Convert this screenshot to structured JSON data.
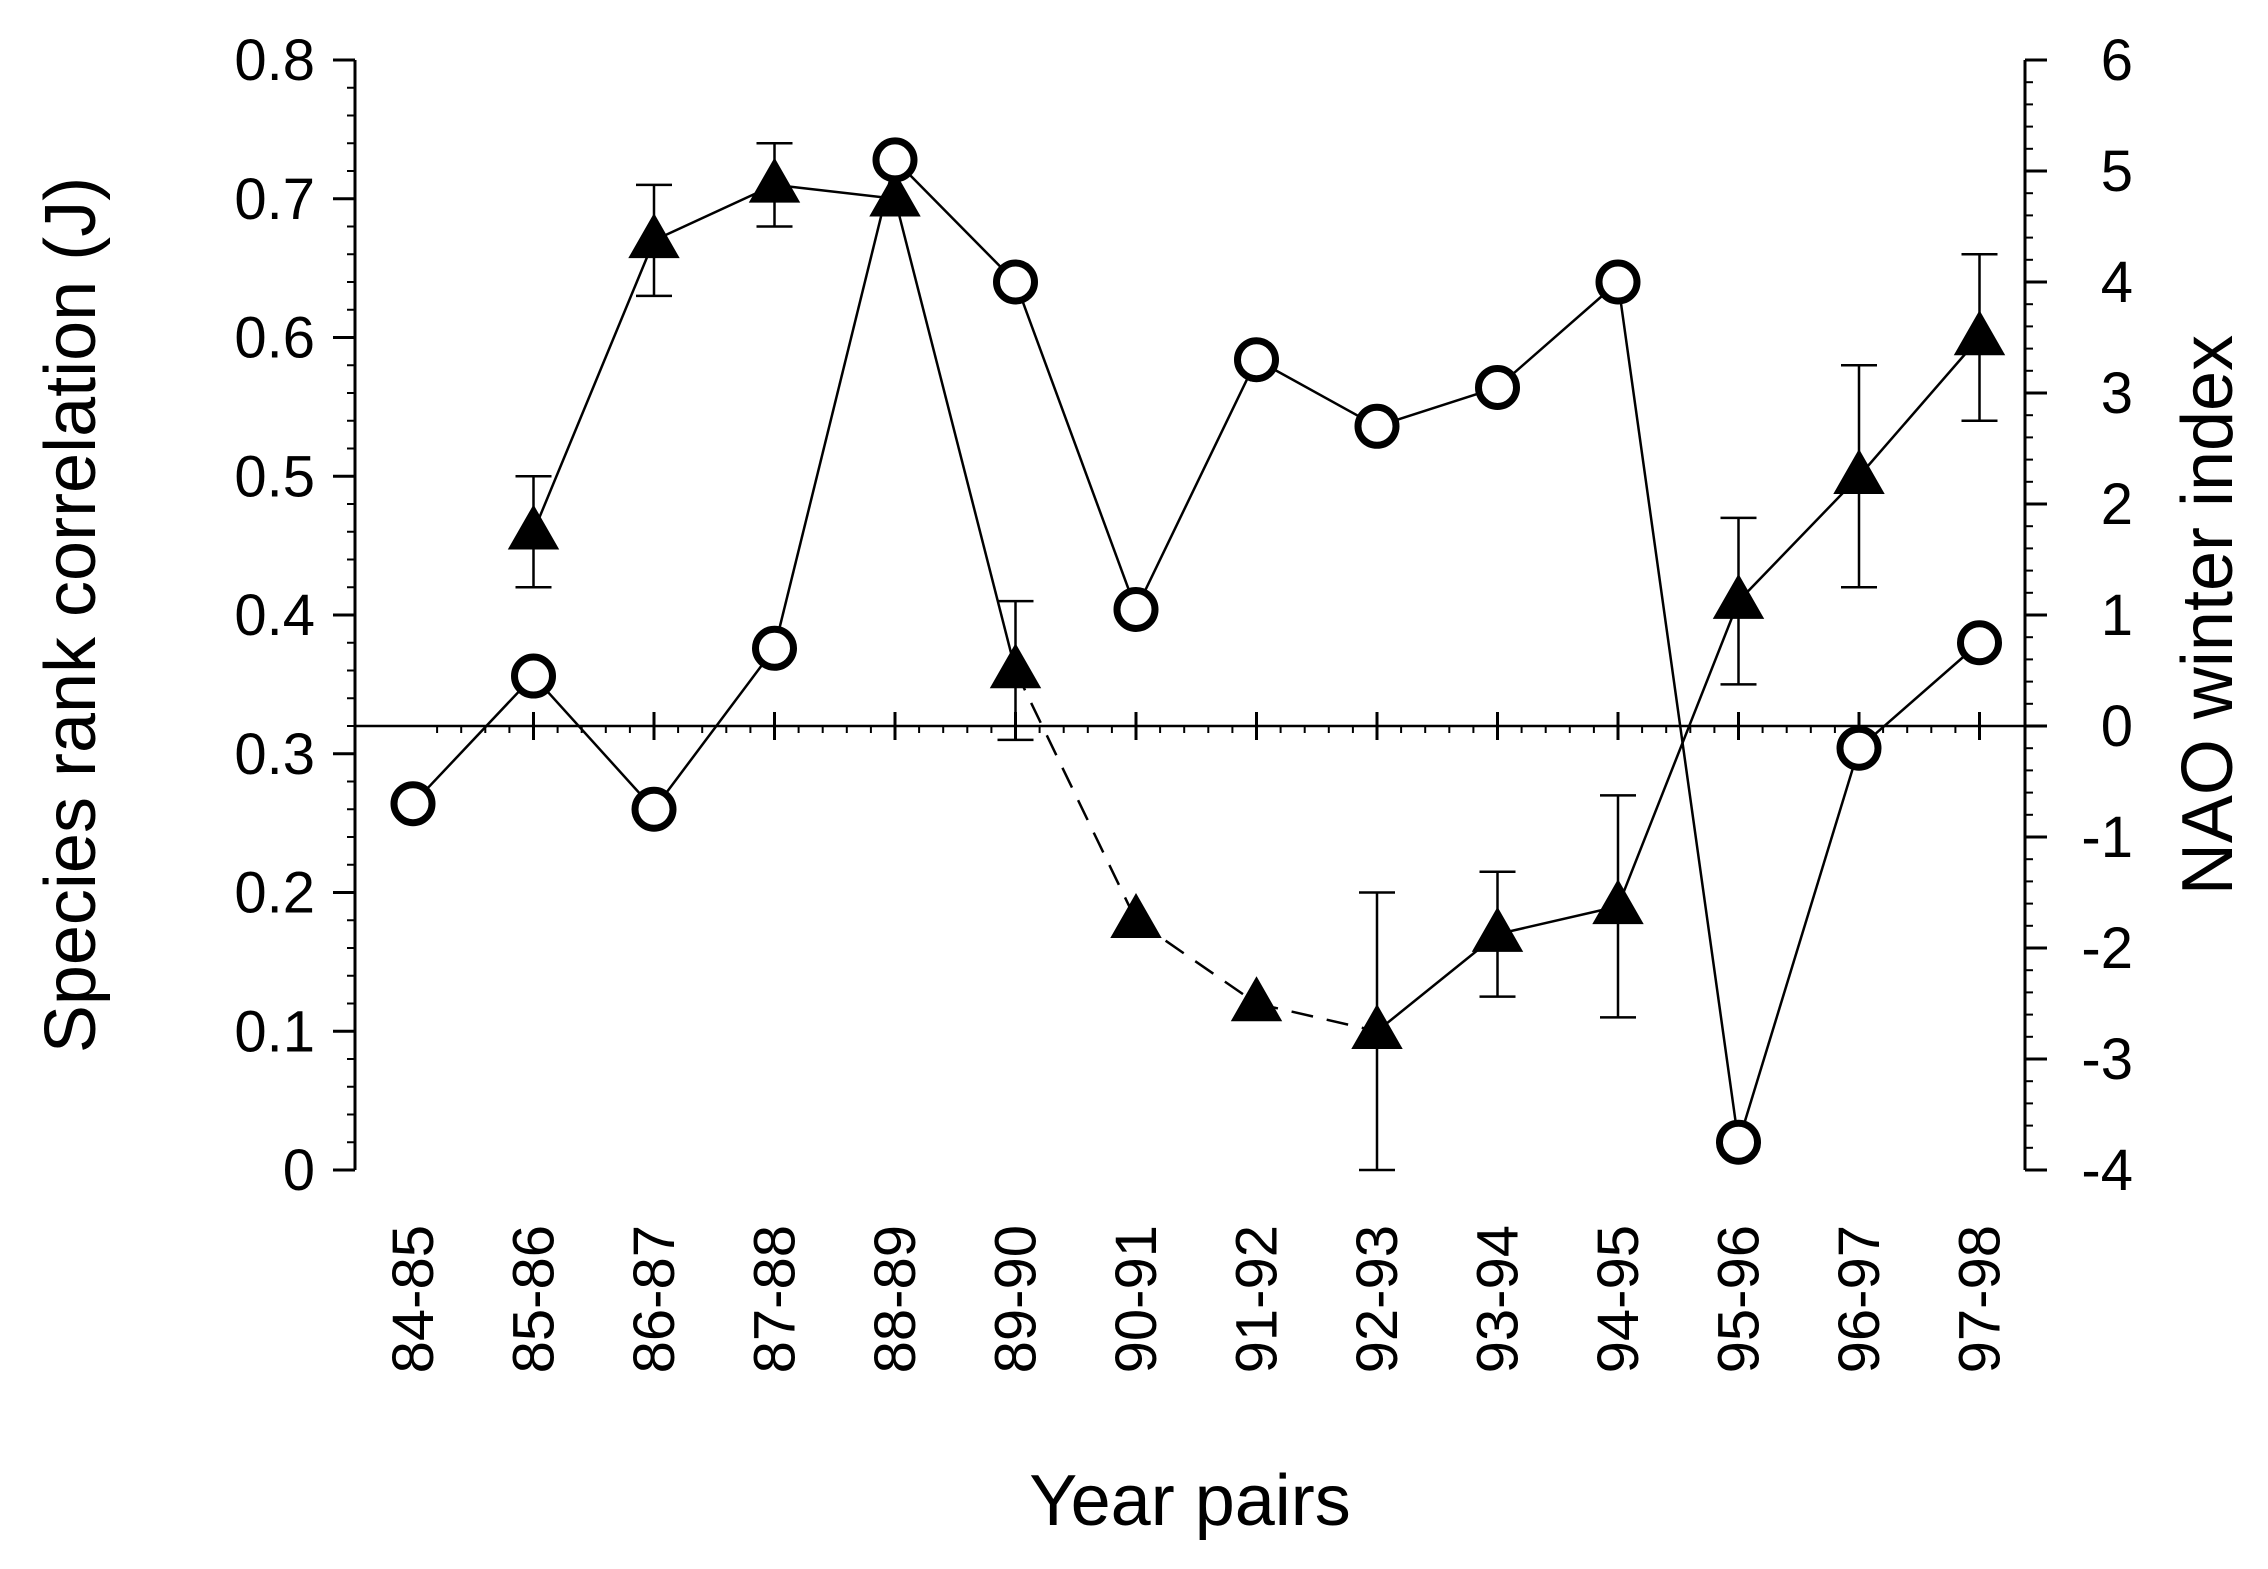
{
  "chart_data": {
    "type": "line",
    "title": "",
    "xlabel": "Year pairs",
    "ylabel": "Species rank correlation (J)",
    "y2label": "NAO winter index",
    "categories": [
      "84-85",
      "85-86",
      "86-87",
      "87-88",
      "88-89",
      "89-90",
      "90-91",
      "91-92",
      "92-93",
      "93-94",
      "94-95",
      "95-96",
      "96-97",
      "97-98"
    ],
    "ylim": [
      0,
      0.8
    ],
    "yticks": [
      "0",
      "0.1",
      "0.2",
      "0.3",
      "0.4",
      "0.5",
      "0.6",
      "0.7",
      "0.8"
    ],
    "y2lim": [
      -4,
      6
    ],
    "y2ticks": [
      "-4",
      "-3",
      "-2",
      "-1",
      "0",
      "1",
      "2",
      "3",
      "4",
      "5",
      "6"
    ],
    "grid": false,
    "series": [
      {
        "marker": "filled-triangle",
        "axis": "left",
        "values": [
          null,
          0.46,
          0.67,
          0.71,
          0.7,
          0.36,
          0.18,
          0.12,
          0.1,
          0.17,
          0.19,
          0.41,
          0.5,
          0.6
        ],
        "error": [
          null,
          0.04,
          0.04,
          0.03,
          null,
          0.05,
          null,
          null,
          0.1,
          0.045,
          0.08,
          0.06,
          0.08,
          0.06
        ],
        "dashed_segments": [
          [
            5,
            8
          ]
        ]
      },
      {
        "marker": "open-circle",
        "axis": "right",
        "values": [
          -0.7,
          0.45,
          -0.75,
          0.7,
          5.1,
          4.0,
          1.05,
          3.3,
          2.7,
          3.05,
          4.0,
          -3.75,
          -0.2,
          0.75
        ]
      }
    ]
  }
}
